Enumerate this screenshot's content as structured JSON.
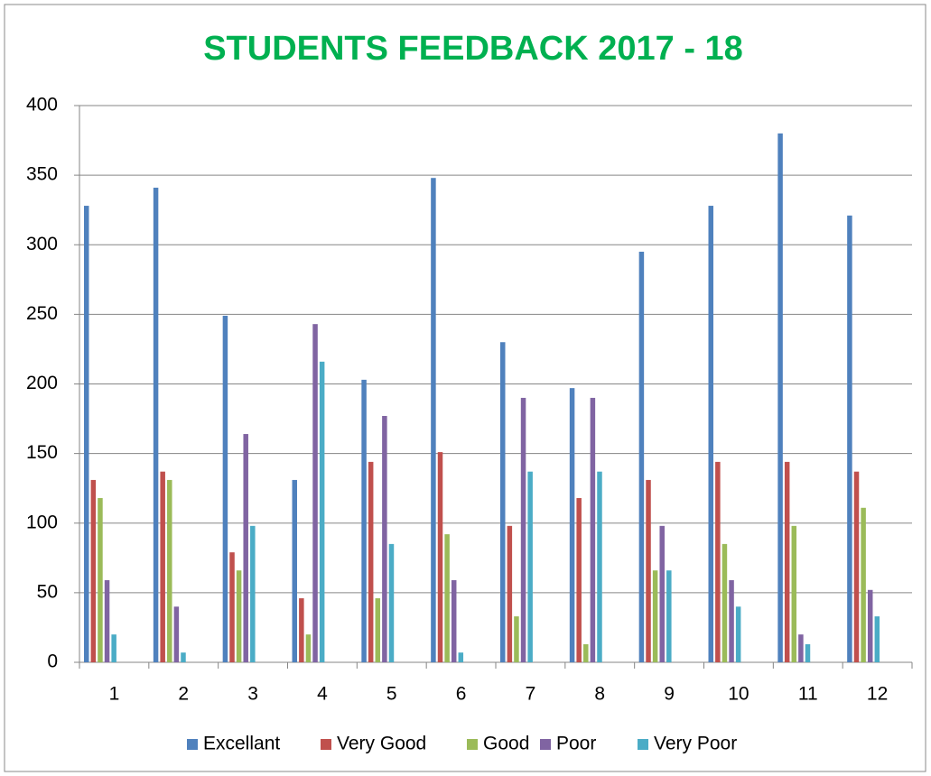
{
  "chart_data": {
    "type": "bar",
    "title": "STUDENTS  FEEDBACK  2017 - 18",
    "categories": [
      "1",
      "2",
      "3",
      "4",
      "5",
      "6",
      "7",
      "8",
      "9",
      "10",
      "11",
      "12"
    ],
    "series": [
      {
        "name": "Excellant",
        "color": "#4f81bd",
        "values": [
          328,
          341,
          249,
          131,
          203,
          348,
          230,
          197,
          295,
          328,
          380,
          321
        ]
      },
      {
        "name": "Very Good",
        "color": "#c0504d",
        "values": [
          131,
          137,
          79,
          46,
          144,
          151,
          98,
          118,
          131,
          144,
          144,
          137
        ]
      },
      {
        "name": "Good",
        "color": "#9bbb59",
        "values": [
          118,
          131,
          66,
          20,
          46,
          92,
          33,
          13,
          66,
          85,
          98,
          111
        ]
      },
      {
        "name": "Poor",
        "color": "#8064a2",
        "values": [
          59,
          40,
          164,
          243,
          177,
          59,
          190,
          190,
          98,
          59,
          20,
          52
        ]
      },
      {
        "name": "Very Poor",
        "color": "#4bacc6",
        "values": [
          20,
          7,
          98,
          216,
          85,
          7,
          137,
          137,
          66,
          40,
          13,
          33
        ]
      }
    ],
    "ylim": [
      0,
      400
    ],
    "yticks": [
      0,
      50,
      100,
      150,
      200,
      250,
      300,
      350,
      400
    ],
    "grid": true,
    "legend": "bottom"
  }
}
